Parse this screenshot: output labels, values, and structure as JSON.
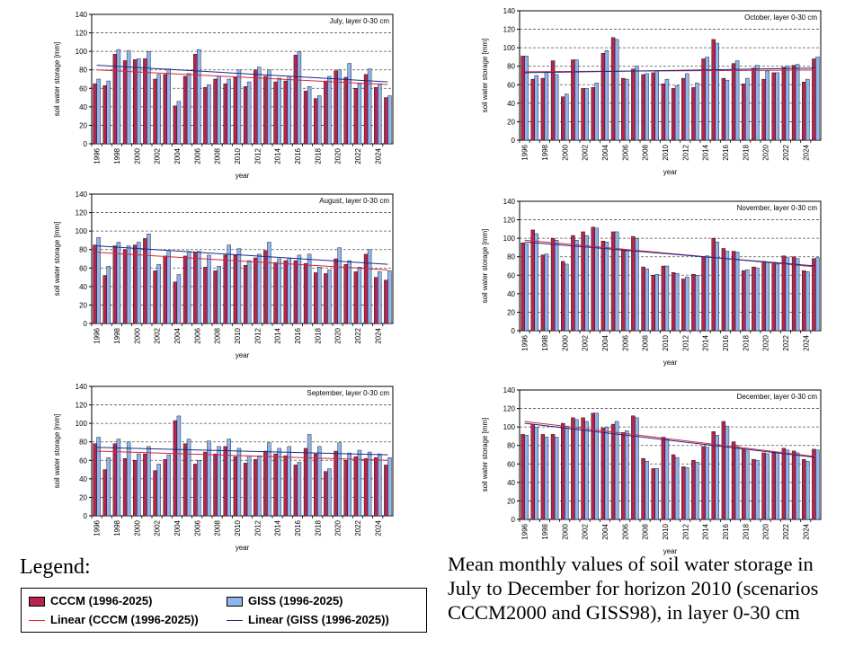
{
  "legend": {
    "title": "Legend:",
    "items": [
      {
        "label": "CCCM (1996-2025)",
        "kind": "bar",
        "color": "#b5264f"
      },
      {
        "label": "GISS (1996-2025)",
        "kind": "bar",
        "color": "#8fb4ee"
      },
      {
        "label": "Linear (CCCM (1996-2025))",
        "kind": "line",
        "color": "#d6263b"
      },
      {
        "label": "Linear (GISS (1996-2025))",
        "kind": "line",
        "color": "#1a2a8a"
      }
    ]
  },
  "caption": {
    "line1": "Mean monthly values of soil water storage in",
    "line2": "July to December for horizon 2010 (scenarios",
    "line3": "CCCM2000 and GISS98), in layer 0-30 cm"
  },
  "colors": {
    "cccm": "#b5264f",
    "giss": "#8fb4ee",
    "cccm_trend": "#d6263b",
    "giss_trend": "#1a2a8a",
    "grid": "#555555"
  },
  "chart_data": [
    {
      "type": "bar",
      "title": "July, layer 0-30 cm",
      "xlabel": "year",
      "ylabel": "soil water storage [mm]",
      "ylim": [
        0,
        140
      ],
      "yticks": [
        "0",
        "20",
        "40",
        "60",
        "80",
        "100",
        "120",
        "140"
      ],
      "xtick_labels": [
        "1996",
        "1998",
        "2000",
        "2002",
        "2004",
        "2006",
        "2008",
        "2010",
        "2012",
        "2014",
        "2016",
        "2018",
        "2020",
        "2022",
        "2024"
      ],
      "categories": [
        1996,
        1997,
        1998,
        1999,
        2000,
        2001,
        2002,
        2003,
        2004,
        2005,
        2006,
        2007,
        2008,
        2009,
        2010,
        2011,
        2012,
        2013,
        2014,
        2015,
        2016,
        2017,
        2018,
        2019,
        2020,
        2021,
        2022,
        2023,
        2024,
        2025
      ],
      "series": [
        {
          "name": "CCCM (1996-2025)",
          "values": [
            65,
            63,
            97,
            90,
            91,
            92,
            70,
            75,
            41,
            73,
            97,
            61,
            70,
            65,
            72,
            62,
            80,
            73,
            67,
            68,
            96,
            57,
            49,
            68,
            79,
            72,
            60,
            75,
            61,
            50
          ]
        },
        {
          "name": "GISS (1996-2025)",
          "values": [
            70,
            68,
            102,
            101,
            92,
            100,
            75,
            81,
            46,
            76,
            102,
            64,
            73,
            70,
            80,
            67,
            83,
            80,
            71,
            73,
            100,
            62,
            52,
            73,
            80,
            87,
            65,
            81,
            65,
            52
          ]
        }
      ],
      "trend": {
        "cccm": [
          80,
          64
        ],
        "giss": [
          85,
          67
        ]
      },
      "grid": true
    },
    {
      "type": "bar",
      "title": "October, layer 0-30 cm",
      "xlabel": "year",
      "ylabel": "soil water storage [mm]",
      "ylim": [
        0,
        140
      ],
      "yticks": [
        "0",
        "20",
        "40",
        "60",
        "80",
        "100",
        "120",
        "140"
      ],
      "xtick_labels": [
        "1996",
        "1998",
        "2000",
        "2002",
        "2004",
        "2006",
        "2008",
        "2010",
        "2012",
        "2014",
        "2016",
        "2018",
        "2020",
        "2022",
        "2024"
      ],
      "categories": [
        1996,
        1997,
        1998,
        1999,
        2000,
        2001,
        2002,
        2003,
        2004,
        2005,
        2006,
        2007,
        2008,
        2009,
        2010,
        2011,
        2012,
        2013,
        2014,
        2015,
        2016,
        2017,
        2018,
        2019,
        2020,
        2021,
        2022,
        2023,
        2024,
        2025
      ],
      "series": [
        {
          "name": "CCCM (1996-2025)",
          "values": [
            91,
            66,
            67,
            86,
            47,
            87,
            56,
            57,
            94,
            111,
            67,
            77,
            71,
            73,
            61,
            56,
            67,
            57,
            88,
            109,
            67,
            83,
            61,
            78,
            66,
            73,
            79,
            81,
            63,
            88
          ]
        },
        {
          "name": "GISS (1996-2025)",
          "values": [
            91,
            70,
            74,
            71,
            50,
            87,
            56,
            62,
            97,
            109,
            66,
            80,
            72,
            75,
            66,
            59,
            72,
            62,
            90,
            105,
            65,
            86,
            67,
            81,
            75,
            73,
            80,
            82,
            66,
            90
          ]
        }
      ],
      "trend": {
        "cccm": [
          74,
          76
        ],
        "giss": [
          73,
          78
        ]
      },
      "grid": true
    },
    {
      "type": "bar",
      "title": "August, layer 0-30 cm",
      "xlabel": "year",
      "ylabel": "soil water storage [mm]",
      "ylim": [
        0,
        140
      ],
      "yticks": [
        "0",
        "20",
        "40",
        "60",
        "80",
        "100",
        "120",
        "140"
      ],
      "xtick_labels": [
        "1996",
        "1998",
        "2000",
        "2002",
        "2004",
        "2006",
        "2008",
        "2010",
        "2012",
        "2014",
        "2016",
        "2018",
        "2020",
        "2022",
        "2024"
      ],
      "categories": [
        1996,
        1997,
        1998,
        1999,
        2000,
        2001,
        2002,
        2003,
        2004,
        2005,
        2006,
        2007,
        2008,
        2009,
        2010,
        2011,
        2012,
        2013,
        2014,
        2015,
        2016,
        2017,
        2018,
        2019,
        2020,
        2021,
        2022,
        2023,
        2024,
        2025
      ],
      "series": [
        {
          "name": "CCCM (1996-2025)",
          "values": [
            85,
            52,
            84,
            80,
            85,
            92,
            57,
            73,
            45,
            73,
            77,
            61,
            57,
            74,
            74,
            63,
            71,
            79,
            66,
            68,
            68,
            65,
            55,
            54,
            70,
            64,
            56,
            75,
            50,
            47
          ]
        },
        {
          "name": "GISS (1996-2025)",
          "values": [
            93,
            62,
            88,
            84,
            88,
            97,
            64,
            79,
            53,
            78,
            78,
            74,
            62,
            85,
            81,
            68,
            75,
            88,
            70,
            71,
            74,
            75,
            61,
            58,
            82,
            68,
            61,
            80,
            56,
            57
          ]
        }
      ],
      "trend": {
        "cccm": [
          77,
          58
        ],
        "giss": [
          84,
          64
        ]
      },
      "grid": true
    },
    {
      "type": "bar",
      "title": "November, layer 0-30 cm",
      "xlabel": "year",
      "ylabel": "soil water storage [mm]",
      "ylim": [
        0,
        140
      ],
      "yticks": [
        "0",
        "20",
        "40",
        "60",
        "80",
        "100",
        "120",
        "140"
      ],
      "xtick_labels": [
        "1996",
        "1998",
        "2000",
        "2002",
        "2004",
        "2006",
        "2008",
        "2010",
        "2012",
        "2014",
        "2016",
        "2018",
        "2020",
        "2022",
        "2024"
      ],
      "categories": [
        1996,
        1997,
        1998,
        1999,
        2000,
        2001,
        2002,
        2003,
        2004,
        2005,
        2006,
        2007,
        2008,
        2009,
        2010,
        2011,
        2012,
        2013,
        2014,
        2015,
        2016,
        2017,
        2018,
        2019,
        2020,
        2021,
        2022,
        2023,
        2024,
        2025
      ],
      "series": [
        {
          "name": "CCCM (1996-2025)",
          "values": [
            95,
            109,
            82,
            100,
            75,
            103,
            107,
            112,
            97,
            107,
            88,
            102,
            69,
            60,
            70,
            63,
            56,
            61,
            80,
            100,
            89,
            86,
            65,
            69,
            75,
            74,
            81,
            80,
            65,
            78
          ]
        },
        {
          "name": "GISS (1996-2025)",
          "values": [
            94,
            105,
            83,
            98,
            72,
            98,
            103,
            111,
            96,
            107,
            86,
            100,
            67,
            61,
            70,
            62,
            58,
            60,
            81,
            96,
            86,
            85,
            66,
            68,
            74,
            72,
            79,
            78,
            64,
            79
          ]
        }
      ],
      "trend": {
        "cccm": [
          98,
          69
        ],
        "giss": [
          96,
          70
        ]
      },
      "grid": true
    },
    {
      "type": "bar",
      "title": "September, layer 0-30 cm",
      "xlabel": "year",
      "ylabel": "soil water storage [mm]",
      "ylim": [
        0,
        140
      ],
      "yticks": [
        "0",
        "20",
        "40",
        "60",
        "80",
        "100",
        "120",
        "140"
      ],
      "xtick_labels": [
        "1996",
        "1998",
        "2000",
        "2002",
        "2004",
        "2006",
        "2008",
        "2010",
        "2012",
        "2014",
        "2016",
        "2018",
        "2020",
        "2022",
        "2024"
      ],
      "categories": [
        1996,
        1997,
        1998,
        1999,
        2000,
        2001,
        2002,
        2003,
        2004,
        2005,
        2006,
        2007,
        2008,
        2009,
        2010,
        2011,
        2012,
        2013,
        2014,
        2015,
        2016,
        2017,
        2018,
        2019,
        2020,
        2021,
        2022,
        2023,
        2024,
        2025
      ],
      "series": [
        {
          "name": "CCCM (1996-2025)",
          "values": [
            78,
            50,
            78,
            62,
            60,
            67,
            49,
            61,
            103,
            78,
            56,
            69,
            67,
            75,
            64,
            57,
            61,
            70,
            67,
            65,
            55,
            73,
            67,
            48,
            70,
            60,
            64,
            62,
            63,
            55
          ]
        },
        {
          "name": "GISS (1996-2025)",
          "values": [
            85,
            63,
            83,
            80,
            67,
            75,
            56,
            66,
            108,
            83,
            60,
            81,
            75,
            83,
            73,
            65,
            65,
            79,
            73,
            75,
            58,
            88,
            75,
            51,
            79,
            68,
            71,
            69,
            67,
            63
          ]
        }
      ],
      "trend": {
        "cccm": [
          70,
          60
        ],
        "giss": [
          74,
          66
        ]
      },
      "grid": true
    },
    {
      "type": "bar",
      "title": "December, layer 0-30 cm",
      "xlabel": "year",
      "ylabel": "soil water storage [mm]",
      "ylim": [
        0,
        140
      ],
      "yticks": [
        "0",
        "20",
        "40",
        "60",
        "80",
        "100",
        "120",
        "140"
      ],
      "xtick_labels": [
        "1996",
        "1998",
        "2000",
        "2002",
        "2004",
        "2006",
        "2008",
        "2010",
        "2012",
        "2014",
        "2016",
        "2018",
        "2020",
        "2022",
        "2024"
      ],
      "categories": [
        1996,
        1997,
        1998,
        1999,
        2000,
        2001,
        2002,
        2003,
        2004,
        2005,
        2006,
        2007,
        2008,
        2009,
        2010,
        2011,
        2012,
        2013,
        2014,
        2015,
        2016,
        2017,
        2018,
        2019,
        2020,
        2021,
        2022,
        2023,
        2024,
        2025
      ],
      "series": [
        {
          "name": "CCCM (1996-2025)",
          "values": [
            92,
            103,
            92,
            92,
            104,
            110,
            110,
            115,
            99,
            103,
            94,
            112,
            66,
            55,
            89,
            70,
            57,
            64,
            79,
            95,
            106,
            84,
            76,
            65,
            72,
            73,
            77,
            74,
            65,
            76
          ]
        },
        {
          "name": "GISS (1996-2025)",
          "values": [
            91,
            100,
            89,
            89,
            101,
            108,
            106,
            115,
            100,
            106,
            96,
            110,
            63,
            55,
            87,
            67,
            56,
            62,
            78,
            91,
            101,
            80,
            74,
            64,
            71,
            72,
            75,
            72,
            63,
            75
          ]
        }
      ],
      "trend": {
        "cccm": [
          106,
          68
        ],
        "giss": [
          104,
          67
        ]
      },
      "grid": true
    }
  ]
}
